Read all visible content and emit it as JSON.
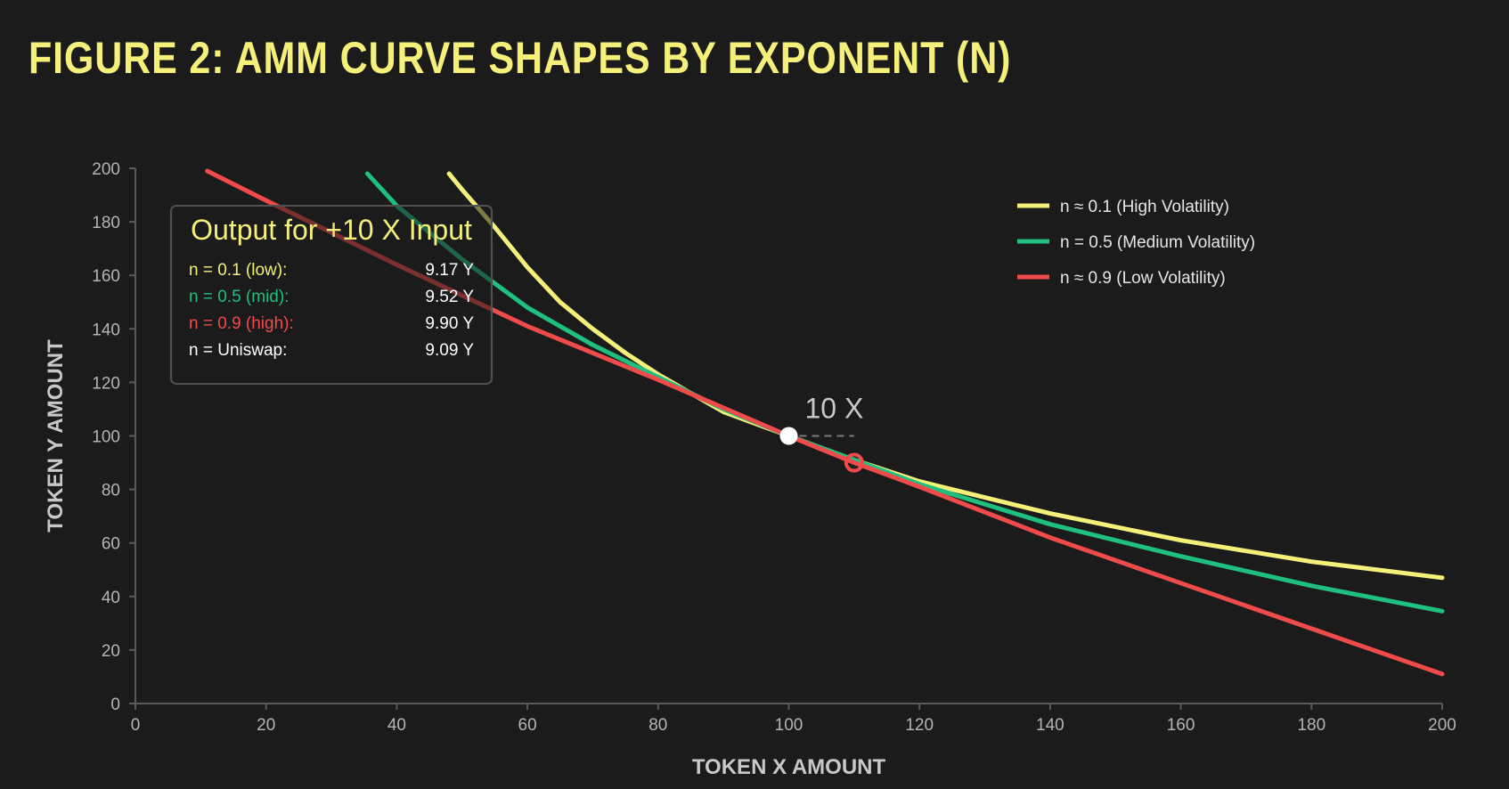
{
  "title": "FIGURE 2: AMM CURVE SHAPES BY EXPONENT (N)",
  "chart_data": {
    "type": "line",
    "xlabel": "TOKEN X AMOUNT",
    "ylabel": "TOKEN Y AMOUNT",
    "xlim": [
      0,
      200
    ],
    "ylim": [
      0,
      200
    ],
    "xticks": [
      0,
      20,
      40,
      60,
      80,
      100,
      120,
      140,
      160,
      180,
      200
    ],
    "yticks": [
      0,
      20,
      40,
      60,
      80,
      100,
      120,
      140,
      160,
      180,
      200
    ],
    "grid": false,
    "legend_position": "top-right",
    "series": [
      {
        "name": "n ≈ 0.1 (High Volatility)",
        "color": "#f5f07a",
        "x": [
          48,
          50,
          55,
          60,
          65,
          70,
          75,
          80,
          90,
          100,
          110,
          120,
          140,
          160,
          180,
          200
        ],
        "y": [
          198,
          192,
          178,
          163,
          150,
          140,
          131,
          123,
          109,
          100,
          91,
          83,
          71,
          61,
          53,
          47
        ]
      },
      {
        "name": "n = 0.5 (Medium Volatility)",
        "color": "#1fbf7f",
        "x": [
          35.5,
          40,
          50,
          60,
          70,
          80,
          90,
          100,
          110,
          120,
          140,
          160,
          180,
          200
        ],
        "y": [
          198,
          186,
          166,
          148,
          134,
          122,
          110,
          100,
          91,
          82,
          67,
          55,
          44,
          34.5
        ]
      },
      {
        "name": "n ≈ 0.9 (Low Volatility)",
        "color": "#f04b4b",
        "x": [
          11,
          20,
          40,
          60,
          80,
          100,
          110,
          120,
          140,
          160,
          180,
          200
        ],
        "y": [
          199,
          188,
          164,
          141,
          121,
          100,
          90,
          81,
          62,
          45,
          28,
          11
        ]
      }
    ],
    "points": [
      {
        "x": 100,
        "y": 100,
        "type": "start"
      },
      {
        "x": 110,
        "y": 90,
        "type": "end"
      }
    ],
    "annotation": "10 X",
    "info_box": {
      "title": "Output for +10 X Input",
      "rows": [
        {
          "label": "n = 0.1 (low):",
          "value": "9.17 Y",
          "color": "#f5f07a"
        },
        {
          "label": "n = 0.5 (mid):",
          "value": "9.52 Y",
          "color": "#1fbf7f"
        },
        {
          "label": "n = 0.9 (high):",
          "value": "9.90 Y",
          "color": "#f04b4b"
        },
        {
          "label": "n = Uniswap:",
          "value": "9.09 Y",
          "color": "#ffffff"
        }
      ]
    }
  }
}
